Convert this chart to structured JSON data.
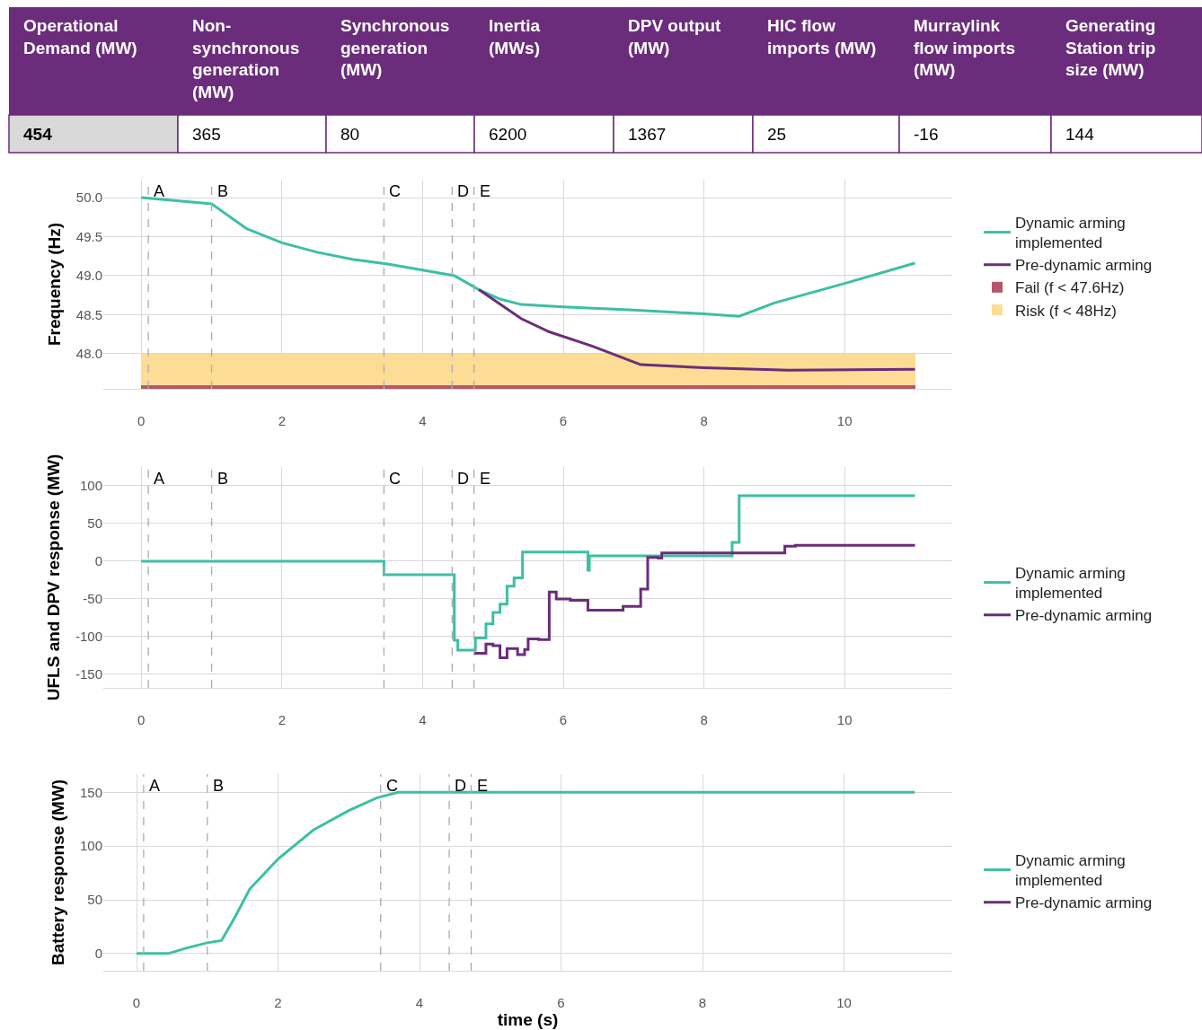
{
  "chart_data": [
    {
      "type": "other",
      "categories": [
        "Operational Demand (MW)",
        "Non-synchronous generation (MW)",
        "Synchronous generation (MW)",
        "Inertia (MWs)",
        "DPV output (MW)",
        "HIC flow imports (MW)",
        "Murraylink flow imports (MW)",
        "Generating Station trip size (MW)"
      ],
      "values": [
        454,
        365,
        80,
        6200,
        1367,
        25,
        -16,
        144
      ],
      "data_labels": true,
      "color": "#6b2d7b"
    },
    {
      "type": "line",
      "ylabel": "Frequency (Hz)",
      "xlim": [
        -0.54,
        11.53
      ],
      "ylim": [
        47.55,
        50.23
      ],
      "xticks": [
        0,
        2,
        4,
        6,
        8,
        10
      ],
      "yticks": [
        {
          "value": 48,
          "label": "48.0"
        },
        {
          "value": 48.5,
          "label": "48.5"
        },
        {
          "value": 49,
          "label": "49.0"
        },
        {
          "value": 49.5,
          "label": "49.5"
        },
        {
          "value": 50,
          "label": "50.0"
        }
      ],
      "grid": true,
      "legend": "right",
      "series": [
        {
          "name": "Dynamic arming implemented",
          "color": "#3dbfa5",
          "x": [
            0,
            1.0,
            1.5,
            2,
            2.5,
            3,
            3.5,
            4,
            4.45,
            4.8,
            5.1,
            5.4,
            6,
            7,
            8,
            8.5,
            9,
            10,
            11
          ],
          "values": [
            50.0,
            49.92,
            49.6,
            49.42,
            49.3,
            49.21,
            49.15,
            49.07,
            49.0,
            48.82,
            48.7,
            48.63,
            48.6,
            48.56,
            48.51,
            48.48,
            48.65,
            48.9,
            49.16
          ]
        },
        {
          "name": "Pre-dynamic arming",
          "color": "#6b2d7b",
          "x": [
            4.8,
            5.4,
            5.8,
            6.4,
            7.1,
            8,
            9.2,
            11
          ],
          "values": [
            48.82,
            48.45,
            48.28,
            48.1,
            47.86,
            47.82,
            47.79,
            47.8
          ]
        }
      ],
      "bands": [
        {
          "axis": "y",
          "from": 47.55,
          "to": 47.6,
          "label": "Fail (f < 47.6Hz)",
          "color": "#b5566b"
        },
        {
          "axis": "y",
          "from": 47.6,
          "to": 48.0,
          "label": "Risk (f < 48Hz)",
          "color": "#fddc95"
        }
      ],
      "ref_lines": [
        {
          "axis": "x",
          "value": 0.1,
          "label": "A",
          "line_style": "dashed"
        },
        {
          "axis": "x",
          "value": 1.0,
          "label": "B",
          "line_style": "dashed"
        },
        {
          "axis": "x",
          "value": 3.45,
          "label": "C",
          "line_style": "dashed"
        },
        {
          "axis": "x",
          "value": 4.42,
          "label": "D",
          "line_style": "dashed"
        },
        {
          "axis": "x",
          "value": 4.73,
          "label": "E",
          "line_style": "dashed"
        }
      ]
    },
    {
      "type": "step",
      "ylabel": "UFLS and DPV response (MW)",
      "xlim": [
        -0.54,
        11.53
      ],
      "ylim": [
        -168,
        125
      ],
      "xticks": [
        0,
        2,
        4,
        6,
        8,
        10
      ],
      "yticks": [
        -150,
        -100,
        -50,
        0,
        50,
        100
      ],
      "grid": true,
      "legend": "right",
      "series": [
        {
          "name": "Dynamic arming implemented",
          "color": "#3dbfa5",
          "x": [
            0,
            3.45,
            4.45,
            4.5,
            4.75,
            4.9,
            5.0,
            5.1,
            5.2,
            5.3,
            5.42,
            6.35,
            6.37,
            8.4,
            8.5,
            11
          ],
          "values": [
            0,
            -18,
            -105,
            -118,
            -102,
            -83,
            -68,
            -57,
            -33,
            -22,
            12,
            -12,
            7,
            25,
            87,
            87
          ]
        },
        {
          "name": "Pre-dynamic arming",
          "color": "#6b2d7b",
          "x": [
            4.73,
            4.9,
            5.0,
            5.1,
            5.2,
            5.35,
            5.45,
            5.5,
            5.65,
            5.8,
            5.9,
            6.1,
            6.35,
            6.85,
            7.1,
            7.2,
            7.35,
            7.4,
            9.15,
            9.3,
            11
          ],
          "values": [
            -122,
            -110,
            -112,
            -128,
            -116,
            -124,
            -117,
            -103,
            -104,
            -41,
            -50,
            -52,
            -65,
            -60,
            -37,
            5,
            4,
            11,
            20,
            21,
            21
          ]
        }
      ],
      "ref_lines": [
        {
          "axis": "x",
          "value": 0.1,
          "label": "A",
          "line_style": "dashed"
        },
        {
          "axis": "x",
          "value": 1.0,
          "label": "B",
          "line_style": "dashed"
        },
        {
          "axis": "x",
          "value": 3.45,
          "label": "C",
          "line_style": "dashed"
        },
        {
          "axis": "x",
          "value": 4.42,
          "label": "D",
          "line_style": "dashed"
        },
        {
          "axis": "x",
          "value": 4.73,
          "label": "E",
          "line_style": "dashed"
        }
      ]
    },
    {
      "type": "line",
      "xlabel": "time (s)",
      "ylabel": "Battery response (MW)",
      "xlim": [
        -0.47,
        11.53
      ],
      "ylim": [
        -16,
        167
      ],
      "xticks": [
        0,
        2,
        4,
        6,
        8,
        10
      ],
      "yticks": [
        0,
        50,
        100,
        150
      ],
      "grid": true,
      "legend": "right",
      "series": [
        {
          "name": "Dynamic arming implemented",
          "color": "#3dbfa5",
          "x": [
            0,
            0.45,
            0.7,
            1.0,
            1.2,
            1.4,
            1.6,
            2,
            2.5,
            3,
            3.4,
            3.7,
            11
          ],
          "values": [
            0,
            0,
            5,
            10,
            12,
            35,
            60,
            88,
            115,
            133,
            145,
            150,
            150
          ]
        },
        {
          "name": "Pre-dynamic arming",
          "color": "#6b2d7b"
        }
      ],
      "ref_lines": [
        {
          "axis": "x",
          "value": 0.1,
          "label": "A",
          "line_style": "dashed"
        },
        {
          "axis": "x",
          "value": 1.0,
          "label": "B",
          "line_style": "dashed"
        },
        {
          "axis": "x",
          "value": 3.45,
          "label": "C",
          "line_style": "dashed"
        },
        {
          "axis": "x",
          "value": 4.42,
          "label": "D",
          "line_style": "dashed"
        },
        {
          "axis": "x",
          "value": 4.73,
          "label": "E",
          "line_style": "dashed"
        }
      ]
    }
  ]
}
